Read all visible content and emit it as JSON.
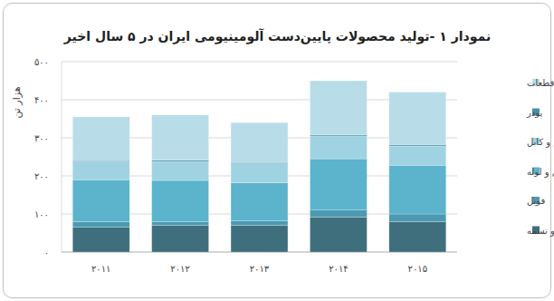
{
  "chart_data": {
    "type": "bar",
    "stacked": true,
    "title": "نمودار ۱ -تولید محصولات پایین‌دست آلومینیومی ایران در ۵ سال اخیر",
    "y_label": "هزار تن",
    "categories": [
      "۲۰۱۱",
      "۲۰۱۲",
      "۲۰۱۳",
      "۲۰۱۴",
      "۲۰۱۵"
    ],
    "series": [
      {
        "name": "ورق و تسمه",
        "color": "#3f6f7c",
        "values": [
          65,
          70,
          70,
          92,
          80
        ]
      },
      {
        "name": "فویل",
        "color": "#4b9ab1",
        "values": [
          15,
          10,
          12,
          18,
          20
        ]
      },
      {
        "name": "پروفیل و لوله",
        "color": "#5bb3cc",
        "values": [
          110,
          108,
          100,
          135,
          128
        ]
      },
      {
        "name": "سیم و کابل",
        "color": "#9fd3e2",
        "values": [
          47,
          50,
          50,
          60,
          50
        ]
      },
      {
        "name": "پودر",
        "color": "#4a8fa6",
        "values": [
          3,
          3,
          3,
          3,
          3
        ]
      },
      {
        "name": "سایر قطعات",
        "color": "#b8dde8",
        "values": [
          115,
          119,
          105,
          142,
          139
        ]
      }
    ],
    "ylim": [
      0,
      500
    ],
    "yticks": [
      {
        "value": 0,
        "label": "۰"
      },
      {
        "value": 100,
        "label": "۱۰۰"
      },
      {
        "value": 200,
        "label": "۲۰۰"
      },
      {
        "value": 300,
        "label": "۳۰۰"
      },
      {
        "value": 400,
        "label": "۴۰۰"
      },
      {
        "value": 500,
        "label": "۵۰۰"
      }
    ],
    "grid": true,
    "legend": "right"
  }
}
